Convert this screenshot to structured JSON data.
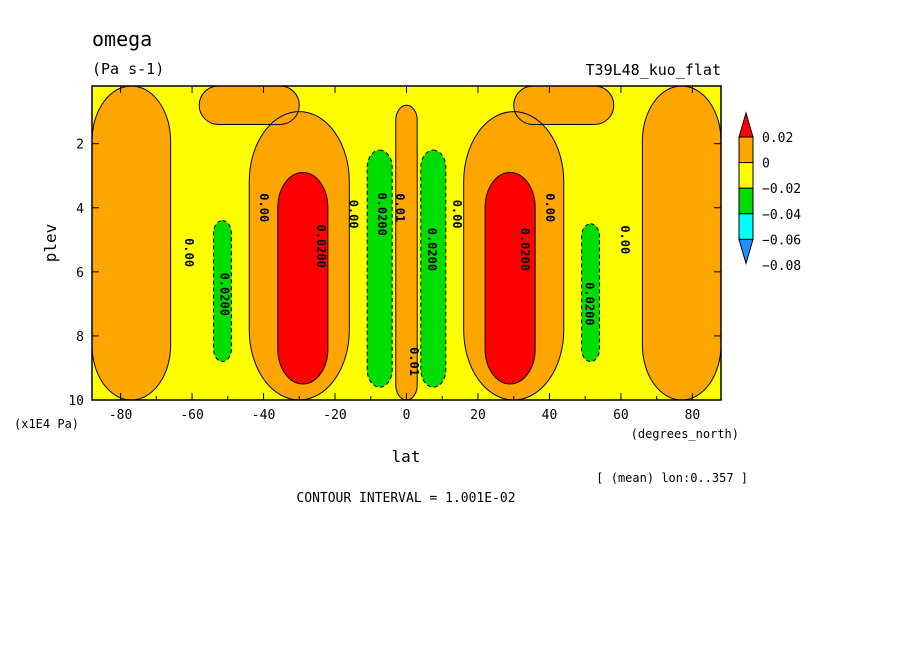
{
  "chart_data": {
    "type": "contour",
    "title": "omega",
    "units": "(Pa s-1)",
    "experiment": "T39L48_kuo_flat",
    "xlabel": "lat",
    "xunits": "(degrees_north)",
    "ylabel": "plev",
    "yunits": "(x1E4 Pa)",
    "xlim": [
      -88,
      88
    ],
    "ylim": [
      10,
      0.2
    ],
    "xticks": [
      "-80",
      "-60",
      "-40",
      "-20",
      "0",
      "20",
      "40",
      "60",
      "80"
    ],
    "xtick_values": [
      -80,
      -60,
      -40,
      -20,
      0,
      20,
      40,
      60,
      80
    ],
    "yticks": [
      "2",
      "4",
      "6",
      "8",
      "10"
    ],
    "ytick_values": [
      2,
      4,
      6,
      8,
      10
    ],
    "averaging_note": "[ (mean) lon:0..357 ]",
    "contour_interval_text": "CONTOUR INTERVAL = 1.001E-02",
    "colorbar": {
      "labels": [
        "0.02",
        "0",
        "−0.02",
        "−0.04",
        "−0.06",
        "−0.08"
      ],
      "colors": [
        "#ff0000",
        "#ffa500",
        "#ffff00",
        "#00dd00",
        "#00ffff",
        "#1e90ff"
      ]
    },
    "contour_labels": [
      {
        "text": "0.00",
        "lat": -61,
        "plev": 5.4
      },
      {
        "text": "0.0200",
        "lat": -51,
        "plev": 6.7
      },
      {
        "text": "0.00",
        "lat": -40,
        "plev": 4.0
      },
      {
        "text": "0.0200",
        "lat": -24,
        "plev": 5.2
      },
      {
        "text": "0.00",
        "lat": -15,
        "plev": 4.2
      },
      {
        "text": "0.0200",
        "lat": -7,
        "plev": 4.2
      },
      {
        "text": "0.01",
        "lat": -2,
        "plev": 4.0
      },
      {
        "text": "0.01",
        "lat": 2,
        "plev": 8.8
      },
      {
        "text": "0.0200",
        "lat": 7,
        "plev": 5.3
      },
      {
        "text": "0.00",
        "lat": 14,
        "plev": 4.2
      },
      {
        "text": "0.0200",
        "lat": 33,
        "plev": 5.3
      },
      {
        "text": "0.00",
        "lat": 40,
        "plev": 4.0
      },
      {
        "text": "0.0200",
        "lat": 51,
        "plev": 7.0
      },
      {
        "text": "0.00",
        "lat": 61,
        "plev": 5.0
      }
    ],
    "palette": {
      "red": "#ff0000",
      "orange": "#ffa500",
      "yellow": "#ffff00",
      "green": "#00dd00"
    },
    "regions": [
      {
        "level": "orange",
        "latmin": -88,
        "latmax": -66,
        "plevmin": 0.2,
        "plevmax": 10
      },
      {
        "level": "orange",
        "latmin": 66,
        "latmax": 88,
        "plevmin": 0.2,
        "plevmax": 10
      },
      {
        "level": "orange",
        "latmin": -58,
        "latmax": -30,
        "plevmin": 0.2,
        "plevmax": 1.4
      },
      {
        "level": "orange",
        "latmin": 30,
        "latmax": 58,
        "plevmin": 0.2,
        "plevmax": 1.4
      },
      {
        "level": "orange",
        "latmin": -44,
        "latmax": -16,
        "plevmin": 1.0,
        "plevmax": 10
      },
      {
        "level": "orange",
        "latmin": 16,
        "latmax": 44,
        "plevmin": 1.0,
        "plevmax": 10
      },
      {
        "level": "orange",
        "latmin": -3,
        "latmax": 3,
        "plevmin": 0.8,
        "plevmax": 10
      },
      {
        "level": "red",
        "latmin": -36,
        "latmax": -22,
        "plevmin": 2.9,
        "plevmax": 9.5
      },
      {
        "level": "red",
        "latmin": 22,
        "latmax": 36,
        "plevmin": 2.9,
        "plevmax": 9.5
      },
      {
        "level": "green",
        "latmin": -11,
        "latmax": -4,
        "plevmin": 2.2,
        "plevmax": 9.6
      },
      {
        "level": "green",
        "latmin": 4,
        "latmax": 11,
        "plevmin": 2.2,
        "plevmax": 9.6
      },
      {
        "level": "green",
        "latmin": -54,
        "latmax": -49,
        "plevmin": 4.4,
        "plevmax": 8.8
      },
      {
        "level": "green",
        "latmin": 49,
        "latmax": 54,
        "plevmin": 4.5,
        "plevmax": 8.8
      }
    ]
  }
}
